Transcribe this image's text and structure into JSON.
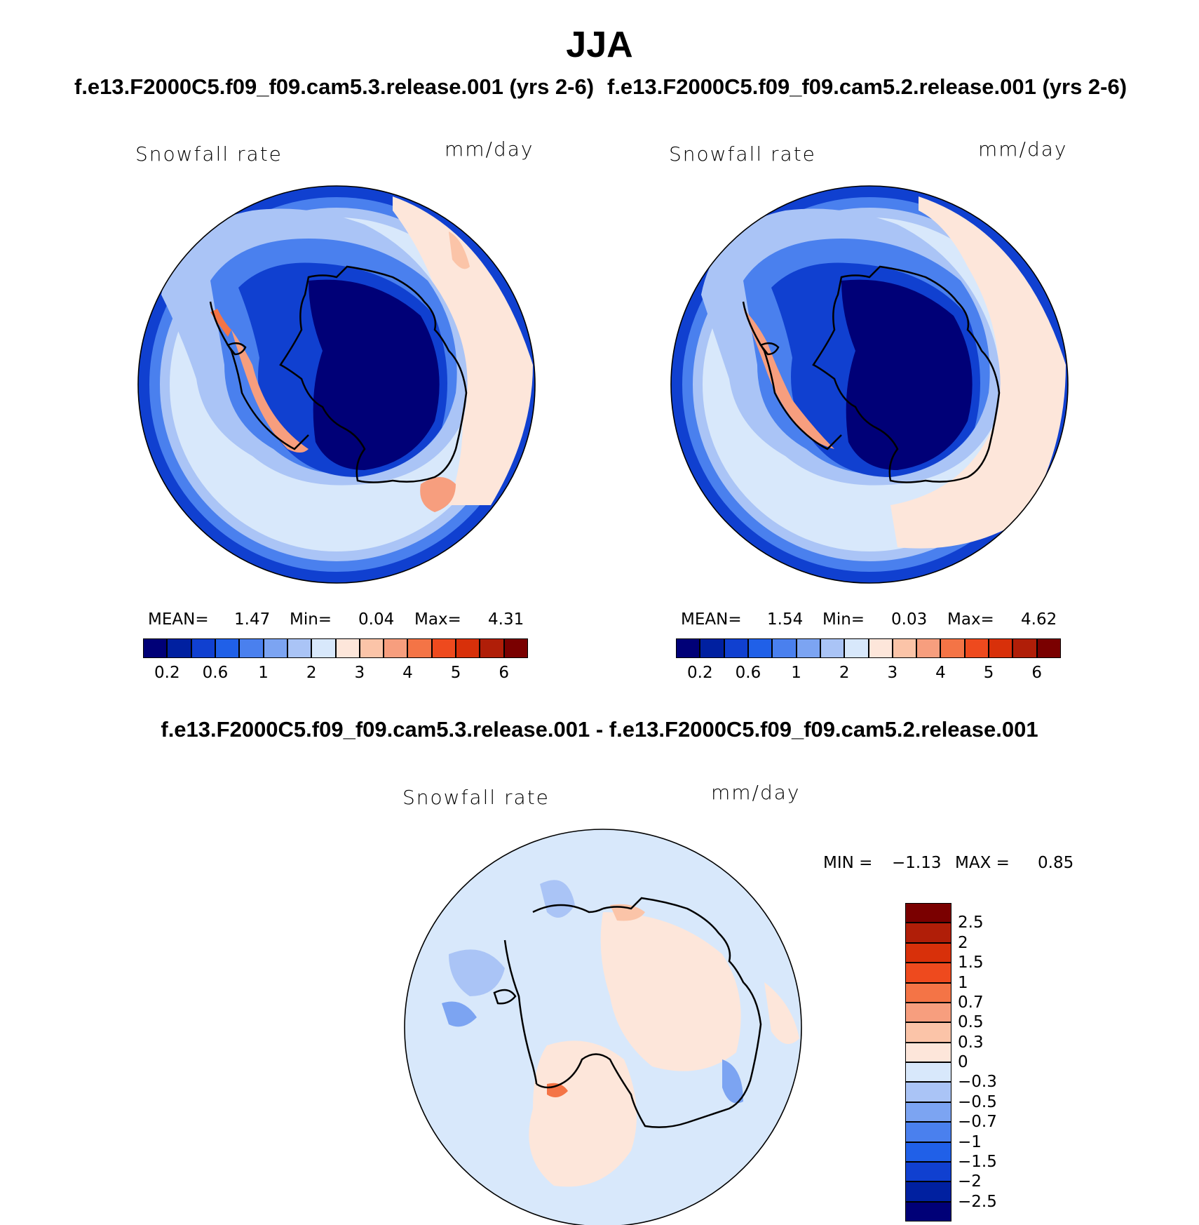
{
  "title": "JJA",
  "panels": [
    {
      "case": "f.e13.F2000C5.f09_f09.cam5.3.release.001 (yrs 2-6)",
      "variable": "Snowfall rate",
      "units": "mm/day",
      "stats": {
        "mean_label": "MEAN=",
        "mean": "1.47",
        "min_label": "Min=",
        "min": "0.04",
        "max_label": "Max=",
        "max": "4.31"
      }
    },
    {
      "case": "f.e13.F2000C5.f09_f09.cam5.2.release.001 (yrs 2-6)",
      "variable": "Snowfall rate",
      "units": "mm/day",
      "stats": {
        "mean_label": "MEAN=",
        "mean": "1.54",
        "min_label": "Min=",
        "min": "0.03",
        "max_label": "Max=",
        "max": "4.62"
      }
    }
  ],
  "abs_colorbar": {
    "colors": [
      "#000077",
      "#0020a0",
      "#1040d0",
      "#2060e8",
      "#4a80ee",
      "#7ca4f2",
      "#aac4f6",
      "#d8e8fb",
      "#fde6da",
      "#fbc4a8",
      "#f79e7e",
      "#f47446",
      "#ee4a1e",
      "#d8300a",
      "#b01e08",
      "#7a0000"
    ],
    "labels": [
      "0.2",
      "0.6",
      "1",
      "2",
      "3",
      "4",
      "5",
      "6"
    ]
  },
  "difference": {
    "title": "f.e13.F2000C5.f09_f09.cam5.3.release.001 - f.e13.F2000C5.f09_f09.cam5.2.release.001",
    "variable": "Snowfall rate",
    "units": "mm/day",
    "min_label": "MIN =",
    "min": "−1.13",
    "max_label": "MAX =",
    "max": "0.85",
    "colorbar": {
      "colors": [
        "#7a0000",
        "#b01e08",
        "#d8300a",
        "#ee4a1e",
        "#f47446",
        "#f79e7e",
        "#fbc4a8",
        "#fde6da",
        "#d8e8fb",
        "#aac4f6",
        "#7ca4f2",
        "#4a80ee",
        "#2060e8",
        "#1040d0",
        "#0020a0",
        "#000077"
      ],
      "labels": [
        "2.5",
        "2",
        "1.5",
        "1",
        "0.7",
        "0.5",
        "0.3",
        "0",
        "−0.3",
        "−0.5",
        "−0.7",
        "−1",
        "−1.5",
        "−2",
        "−2.5"
      ]
    }
  }
}
